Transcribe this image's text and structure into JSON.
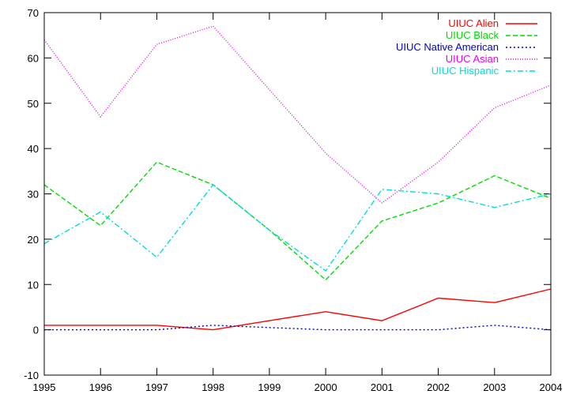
{
  "chart_data": {
    "type": "line",
    "title": "",
    "xlabel": "",
    "ylabel": "",
    "x": [
      1995,
      1996,
      1997,
      1998,
      1999,
      2000,
      2001,
      2002,
      2003,
      2004
    ],
    "xlim": [
      1995,
      2004
    ],
    "ylim": [
      -10,
      70
    ],
    "x_ticks": [
      "1995",
      "1996",
      "1997",
      "1998",
      "1999",
      "2000",
      "2001",
      "2002",
      "2003",
      "2004"
    ],
    "y_ticks": [
      "-10",
      "0",
      "10",
      "20",
      "30",
      "40",
      "50",
      "60",
      "70"
    ],
    "grid": false,
    "legend_position": "top-right",
    "series": [
      {
        "name": "UIUC Alien",
        "color": "#ff0000",
        "dash": "solid",
        "values": [
          1,
          1,
          1,
          0,
          2,
          4,
          2,
          7,
          6,
          9
        ]
      },
      {
        "name": "UIUC Black",
        "color": "#00dd00",
        "dash": "dashed",
        "values": [
          32,
          23,
          37,
          32,
          22,
          11,
          24,
          28,
          34,
          29
        ]
      },
      {
        "name": "UIUC Native American",
        "color": "#0000cc",
        "dash": "dotted",
        "values": [
          0,
          0,
          0,
          1,
          0.5,
          0,
          0,
          0,
          1,
          0
        ]
      },
      {
        "name": "UIUC Asian",
        "color": "#ee00ee",
        "dash": "fine-dotted",
        "values": [
          64,
          47,
          63,
          67,
          53,
          39,
          28,
          37,
          49,
          54
        ]
      },
      {
        "name": "UIUC Hispanic",
        "color": "#00dddd",
        "dash": "dash-dot",
        "values": [
          19,
          26,
          16,
          32,
          22,
          13,
          31,
          30,
          27,
          30
        ]
      }
    ]
  }
}
